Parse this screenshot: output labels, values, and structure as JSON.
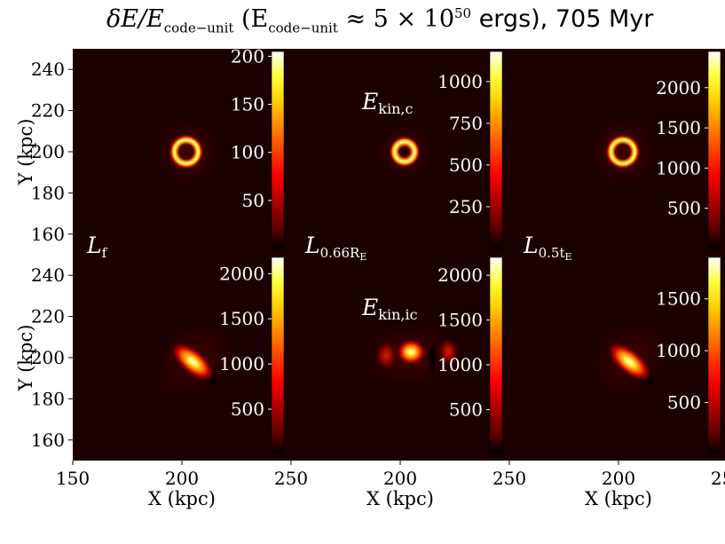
{
  "figure": {
    "title_main": "δE/E",
    "title_sub": "code−unit",
    "title_paren_open": " (E",
    "title_paren_sub": "code−unit",
    "title_approx": " ≈ 5 × 10",
    "title_exp": "50",
    "title_units": " ergs), 705 Myr"
  },
  "chart_data": {
    "type": "heatmap",
    "layout": "2x3 grid of image panels with colorbars",
    "title": "δE/E_code−unit (E_code−unit ≈ 5 × 10^50 ergs), 705 Myr",
    "colormap": "hot",
    "xlabel": "X (kpc)",
    "ylabel": "Y (kpc)",
    "xlim": [
      150,
      250
    ],
    "ylim": [
      150,
      250
    ],
    "x_ticks": [
      150,
      200,
      250
    ],
    "y_ticks": [
      160,
      180,
      200,
      220,
      240
    ],
    "rows": [
      {
        "row_label": "E_kin,c",
        "row_label_main": "E",
        "row_label_sub": "kin,c",
        "panels": [
          {
            "label_main": "L",
            "label_sub": "f",
            "cbar_max": 205,
            "cbar_ticks": [
              50,
              100,
              150,
              200
            ],
            "feature": "ring",
            "center": [
              202,
              200
            ],
            "radius": 4.5,
            "ring_width": 2.5
          },
          {
            "label_main": "L",
            "label_sub": "0.66R",
            "label_subsub": "E",
            "cbar_max": 1180,
            "cbar_ticks": [
              250,
              500,
              750,
              1000
            ],
            "feature": "ring",
            "center": [
              202,
              200
            ],
            "radius": 3.5,
            "ring_width": 2.5
          },
          {
            "label_main": "L",
            "label_sub": "0.5t",
            "label_subsub": "E",
            "cbar_max": 2450,
            "cbar_ticks": [
              500,
              1000,
              1500,
              2000
            ],
            "feature": "ring",
            "center": [
              202,
              200
            ],
            "radius": 4.5,
            "ring_width": 2.5
          }
        ]
      },
      {
        "row_label": "E_kin,ic",
        "row_label_main": "E",
        "row_label_sub": "kin,ic",
        "panels": [
          {
            "cbar_max": 2180,
            "cbar_ticks": [
              500,
              1000,
              1500,
              2000
            ],
            "feature": "elongated blob",
            "center": [
              205,
              198
            ],
            "angle_deg": -40
          },
          {
            "cbar_max": 2200,
            "cbar_ticks": [
              500,
              1000,
              1500,
              2000
            ],
            "feature": "blob with side lobes",
            "center": [
              205,
              201
            ]
          },
          {
            "cbar_max": 1900,
            "cbar_ticks": [
              500,
              1000,
              1500
            ],
            "feature": "elongated blob",
            "center": [
              205,
              198
            ],
            "angle_deg": -40
          }
        ]
      }
    ]
  }
}
